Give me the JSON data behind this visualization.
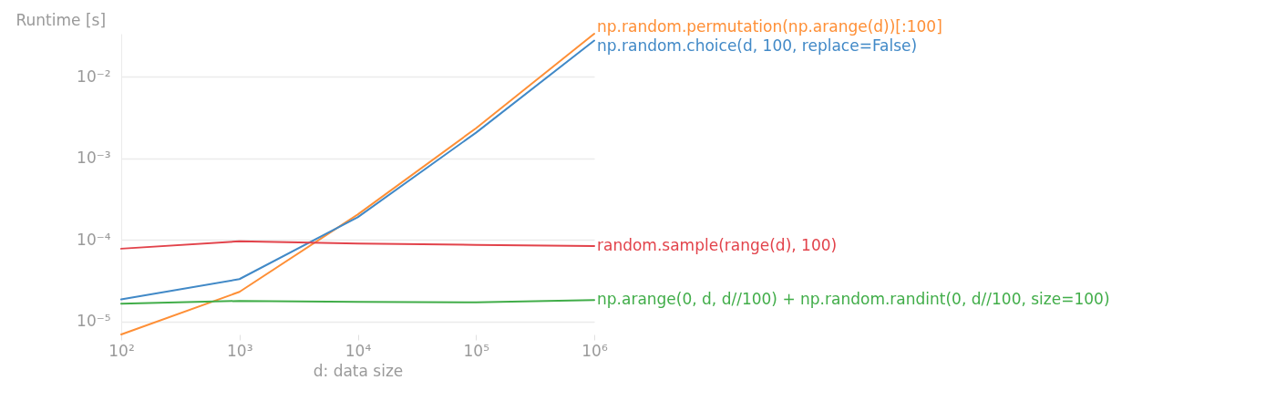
{
  "chart_data": {
    "type": "line",
    "xlabel": "d: data size",
    "ylabel": "Runtime [s]",
    "x": [
      100,
      1000,
      10000,
      100000,
      1000000
    ],
    "series": [
      {
        "name": "np.random.permutation(np.arange(d))[:100]",
        "color": "#fe8f36",
        "values": [
          6.9e-06,
          2.3e-05,
          0.000205,
          0.00235,
          0.034
        ]
      },
      {
        "name": "np.random.choice(d, 100, replace=False)",
        "color": "#4189c7",
        "values": [
          1.86e-05,
          3.3e-05,
          0.00019,
          0.00207,
          0.028
        ]
      },
      {
        "name": "random.sample(range(d), 100)",
        "color": "#e2434b",
        "values": [
          7.8e-05,
          9.6e-05,
          9e-05,
          8.7e-05,
          8.4e-05
        ]
      },
      {
        "name": "np.arange(0, d, d//100) + np.random.randint(0, d//100, size=100)",
        "color": "#41ad49",
        "values": [
          1.65e-05,
          1.78e-05,
          1.73e-05,
          1.71e-05,
          1.82e-05
        ]
      }
    ],
    "log": "xy",
    "xlim": [
      100,
      1000000
    ],
    "ylim": [
      6.9e-06,
      0.034
    ],
    "xticks": [
      {
        "value": 100,
        "label": "10²"
      },
      {
        "value": 1000,
        "label": "10³"
      },
      {
        "value": 10000,
        "label": "10⁴"
      },
      {
        "value": 100000,
        "label": "10⁵"
      },
      {
        "value": 1000000,
        "label": "10⁶"
      }
    ],
    "yticks": [
      {
        "value": 1e-05,
        "label": "10⁻⁵"
      },
      {
        "value": 0.0001,
        "label": "10⁻⁴"
      },
      {
        "value": 0.001,
        "label": "10⁻³"
      },
      {
        "value": 0.01,
        "label": "10⁻²"
      }
    ],
    "grid": "y",
    "legend": false,
    "marker": "none",
    "line_style": "solid"
  }
}
